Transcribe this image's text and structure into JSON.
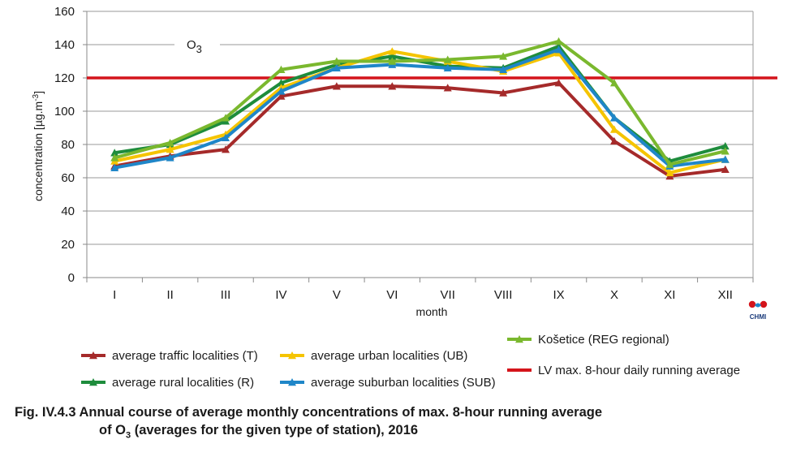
{
  "chart_data": {
    "type": "line",
    "title": "O",
    "title_subscript": "3",
    "xlabel": "month",
    "ylabel": "concentration [µg.m-3]",
    "ylabel_main": "concentration [µg.m",
    "ylabel_sup": "-3",
    "ylabel_end": "]",
    "ylim": [
      0,
      160
    ],
    "yticks": [
      0,
      20,
      40,
      60,
      80,
      100,
      120,
      140,
      160
    ],
    "grid": true,
    "legend_position": "bottom",
    "categories": [
      "I",
      "II",
      "III",
      "IV",
      "V",
      "VI",
      "VII",
      "VIII",
      "IX",
      "X",
      "XI",
      "XII"
    ],
    "series": [
      {
        "name": "average traffic localities (T)",
        "color": "#a52a2a",
        "values": [
          67,
          73,
          77,
          109,
          115,
          115,
          114,
          111,
          117,
          82,
          61,
          65
        ]
      },
      {
        "name": "average rural localities (R)",
        "color": "#1e8c3c",
        "values": [
          75,
          80,
          94,
          117,
          128,
          133,
          127,
          126,
          139,
          96,
          70,
          79
        ]
      },
      {
        "name": "average urban localities (UB)",
        "color": "#f5c400",
        "values": [
          70,
          77,
          86,
          114,
          126,
          136,
          130,
          124,
          135,
          89,
          63,
          71
        ]
      },
      {
        "name": "average suburban localities (SUB)",
        "color": "#1f86c8",
        "values": [
          66,
          72,
          84,
          112,
          126,
          128,
          126,
          125,
          137,
          96,
          67,
          71
        ]
      },
      {
        "name": "Košetice (REG  regional)",
        "color": "#7ab82e",
        "values": [
          72,
          81,
          96,
          125,
          130,
          130,
          131,
          133,
          142,
          117,
          68,
          76
        ]
      }
    ],
    "limit_line": {
      "name": "LV max. 8-hour daily running average",
      "value": 120,
      "color": "#d4141b"
    }
  },
  "caption": {
    "line1": "Fig. IV.4.3  Annual course of average monthly concentrations of max. 8-hour running average",
    "line2_pre": "of O",
    "line2_sub": "3",
    "line2_post": " (averages for the given type of station), 2016"
  },
  "logo": {
    "text": "CHMI"
  }
}
